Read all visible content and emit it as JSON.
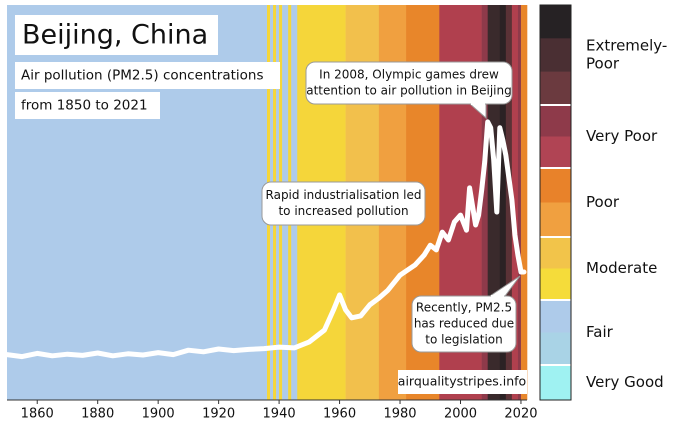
{
  "chart_data": {
    "type": "stripes-line",
    "title": "Beijing, China",
    "subtitle_lines": [
      "Air pollution (PM2.5) concentrations",
      "from 1850 to 2021"
    ],
    "source": "airqualitystripes.info",
    "xlim": [
      1850,
      2022
    ],
    "ylim": [
      0,
      100
    ],
    "xticks": [
      1860,
      1880,
      1900,
      1920,
      1940,
      1960,
      1980,
      2000,
      2020
    ],
    "line_color": "#ffffff",
    "bands": [
      {
        "from": 1850,
        "to": 1936,
        "color": "#aecbea"
      },
      {
        "from": 1936,
        "to": 1937,
        "color": "#f5d63a"
      },
      {
        "from": 1937,
        "to": 1938,
        "color": "#aecbea"
      },
      {
        "from": 1938,
        "to": 1939,
        "color": "#f5d63a"
      },
      {
        "from": 1939,
        "to": 1940,
        "color": "#aecbea"
      },
      {
        "from": 1940,
        "to": 1941,
        "color": "#f5d63a"
      },
      {
        "from": 1941,
        "to": 1943,
        "color": "#aecbea"
      },
      {
        "from": 1943,
        "to": 1944,
        "color": "#f5d63a"
      },
      {
        "from": 1944,
        "to": 1946,
        "color": "#aecbea"
      },
      {
        "from": 1946,
        "to": 1962,
        "color": "#f5d63a"
      },
      {
        "from": 1962,
        "to": 1973,
        "color": "#f2c04c"
      },
      {
        "from": 1973,
        "to": 1982,
        "color": "#f0a040"
      },
      {
        "from": 1982,
        "to": 1993,
        "color": "#e8862a"
      },
      {
        "from": 1993,
        "to": 2007,
        "color": "#b0404e"
      },
      {
        "from": 2007,
        "to": 2009,
        "color": "#8e3a4a"
      },
      {
        "from": 2009,
        "to": 2013,
        "color": "#3a2a2c"
      },
      {
        "from": 2013,
        "to": 2015,
        "color": "#2b2224"
      },
      {
        "from": 2015,
        "to": 2017,
        "color": "#5a3236"
      },
      {
        "from": 2017,
        "to": 2019,
        "color": "#b0404e"
      },
      {
        "from": 2019,
        "to": 2020,
        "color": "#8e3a4a"
      },
      {
        "from": 2020,
        "to": 2022,
        "color": "#e8862a"
      }
    ],
    "x": [
      1850,
      1855,
      1860,
      1865,
      1870,
      1875,
      1880,
      1885,
      1890,
      1895,
      1900,
      1905,
      1910,
      1915,
      1920,
      1925,
      1930,
      1935,
      1940,
      1945,
      1950,
      1955,
      1958,
      1960,
      1962,
      1964,
      1967,
      1970,
      1973,
      1976,
      1980,
      1985,
      1988,
      1990,
      1992,
      1994,
      1996,
      1998,
      2000,
      2002,
      2003,
      2005,
      2006,
      2007,
      2008,
      2009,
      2010,
      2011,
      2012,
      2013,
      2014,
      2015,
      2016,
      2017,
      2018,
      2019,
      2020,
      2021
    ],
    "values": [
      11.5,
      11.0,
      11.8,
      11.2,
      11.6,
      11.3,
      11.9,
      11.2,
      11.7,
      11.4,
      12.0,
      11.5,
      12.6,
      12.2,
      12.9,
      12.5,
      12.8,
      13.0,
      13.4,
      13.2,
      14.7,
      17.7,
      22.8,
      26.6,
      22.8,
      20.8,
      21.3,
      24.1,
      25.8,
      27.8,
      31.6,
      34.2,
      36.7,
      39.2,
      38.0,
      42.5,
      40.5,
      45.1,
      46.8,
      43.0,
      53.7,
      44.3,
      46.8,
      53.2,
      60.3,
      70.4,
      68.9,
      60.8,
      47.6,
      68.9,
      65.8,
      62.0,
      56.2,
      50.6,
      41.8,
      36.7,
      32.4,
      32.4
    ],
    "annotations": [
      {
        "lines": [
          "In 2008, Olympic games drew",
          "attention to air pollution in Beijing"
        ]
      },
      {
        "lines": [
          "Rapid industrialisation led",
          "to increased pollution"
        ]
      },
      {
        "lines": [
          "Recently, PM2.5",
          "has reduced due",
          "to legislation"
        ]
      }
    ],
    "legend": [
      {
        "label_lines": [
          "Extremely-",
          "Poor"
        ],
        "colors": [
          "#262224",
          "#4a2f33",
          "#6b3a3f"
        ]
      },
      {
        "label_lines": [
          "Very Poor"
        ],
        "colors": [
          "#8e3a4a",
          "#b04454"
        ]
      },
      {
        "label_lines": [
          "Poor"
        ],
        "colors": [
          "#e8822a",
          "#f0a040"
        ]
      },
      {
        "label_lines": [
          "Moderate"
        ],
        "colors": [
          "#f2c44a",
          "#f5dc3a"
        ]
      },
      {
        "label_lines": [
          "Fair"
        ],
        "colors": [
          "#aecbea",
          "#a9d3e6"
        ]
      },
      {
        "label_lines": [
          "Very Good"
        ],
        "colors": [
          "#9ff2f2"
        ]
      }
    ]
  }
}
